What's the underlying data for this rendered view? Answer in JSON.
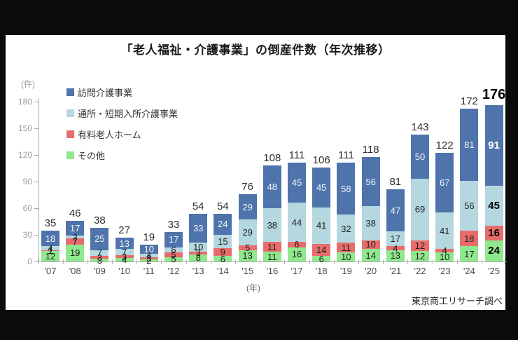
{
  "source": "東京商工リサーチ調べ",
  "chart_data": {
    "type": "bar",
    "subtype": "stacked-vertical",
    "title": "「老人福祉・介護事業」の倒産件数（年次推移）",
    "unit_y": "(件)",
    "unit_x": "(年)",
    "ylim": [
      0,
      180
    ],
    "yticks": [
      0,
      30,
      60,
      90,
      120,
      150,
      180
    ],
    "grid": "off",
    "legend_position": "top-left",
    "categories": [
      "'07",
      "'08",
      "'09",
      "'10",
      "'11",
      "'12",
      "'13",
      "'14",
      "'15",
      "'16",
      "'17",
      "'18",
      "'19",
      "'20",
      "'21",
      "'22",
      "'23",
      "'24",
      "'25"
    ],
    "totals": [
      35,
      46,
      38,
      27,
      19,
      33,
      54,
      54,
      76,
      108,
      111,
      106,
      111,
      118,
      81,
      143,
      122,
      172,
      176
    ],
    "series": [
      {
        "name": "訪問介護事業",
        "color": "#4e74ab",
        "label_color": "white",
        "values": [
          18,
          17,
          25,
          13,
          10,
          17,
          33,
          24,
          29,
          48,
          45,
          45,
          58,
          56,
          47,
          50,
          67,
          81,
          91
        ]
      },
      {
        "name": "通所・短期入所介護事業",
        "color": "#b5d8e0",
        "label_color": "dark",
        "values": [
          4,
          3,
          7,
          7,
          4,
          6,
          10,
          15,
          29,
          38,
          44,
          41,
          32,
          38,
          17,
          69,
          41,
          56,
          45
        ]
      },
      {
        "name": "有料老人ホーム",
        "color": "#e96c6c",
        "label_color": "dark",
        "values": [
          1,
          7,
          3,
          3,
          3,
          5,
          3,
          9,
          5,
          11,
          6,
          14,
          11,
          10,
          4,
          12,
          4,
          18,
          16
        ]
      },
      {
        "name": "その他",
        "color": "#90e88e",
        "label_color": "dark",
        "values": [
          12,
          19,
          3,
          4,
          2,
          5,
          8,
          6,
          13,
          11,
          16,
          6,
          10,
          14,
          13,
          12,
          10,
          17,
          24
        ]
      }
    ],
    "highlighted_category": "'25"
  }
}
